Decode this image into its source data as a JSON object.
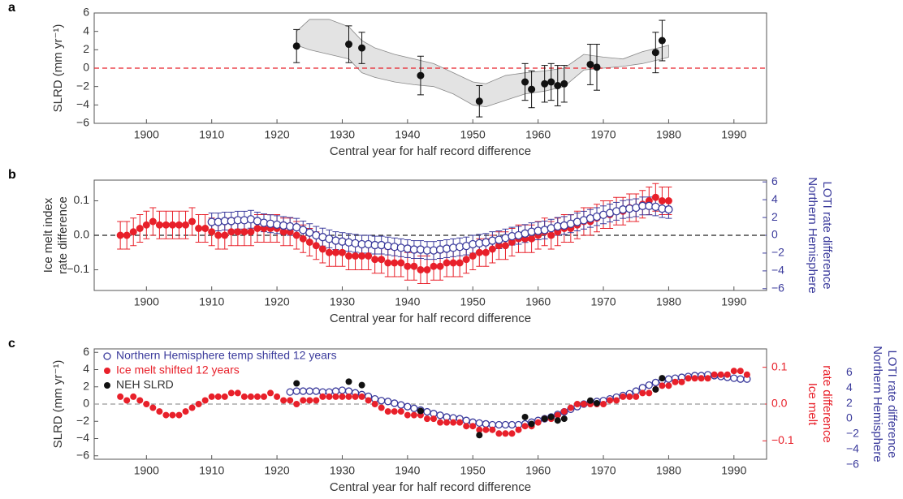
{
  "chart_data": [
    {
      "type": "scatter",
      "panel_label": "a",
      "xlabel": "Central year for half record difference",
      "ylabel": "SLRD (mm yr⁻¹)",
      "xlim": [
        1892,
        1995
      ],
      "xticks": [
        1900,
        1910,
        1920,
        1930,
        1940,
        1950,
        1960,
        1970,
        1980,
        1990
      ],
      "ylim": [
        -6,
        6
      ],
      "yticks": [
        {
          "value": -6,
          "label": "−6"
        },
        {
          "value": -4,
          "label": "−4"
        },
        {
          "value": -2,
          "label": "−2"
        },
        0,
        2,
        4,
        6
      ],
      "reference_line": {
        "value": 0,
        "color": "#e8202a",
        "style": "dashed"
      },
      "band": {
        "color": "#e3e3e3",
        "x": [
          1923,
          1925,
          1928,
          1931,
          1933,
          1935,
          1938,
          1941,
          1944,
          1947,
          1950,
          1952,
          1955,
          1958,
          1961,
          1964,
          1967,
          1970,
          1973,
          1976,
          1979,
          1980
        ],
        "upper": [
          4.0,
          5.3,
          5.3,
          4.5,
          3.0,
          2.2,
          1.5,
          1.0,
          0.5,
          -0.5,
          -1.5,
          -1.7,
          -0.8,
          -0.5,
          -0.3,
          0.0,
          1.5,
          1.2,
          1.0,
          1.8,
          2.3,
          2.5
        ],
        "lower": [
          2.5,
          2.0,
          1.5,
          1.0,
          -0.5,
          -1.0,
          -1.5,
          -1.8,
          -2.0,
          -2.8,
          -4.0,
          -4.2,
          -3.5,
          -2.8,
          -2.5,
          -2.0,
          -0.2,
          0.0,
          0.2,
          0.5,
          1.0,
          1.2
        ]
      },
      "series": [
        {
          "color": "#111111",
          "marker": "filled",
          "axis": "y",
          "x": [
            1923,
            1931,
            1933,
            1942,
            1951,
            1958,
            1959,
            1961,
            1962,
            1963,
            1964,
            1968,
            1969,
            1978,
            1979
          ],
          "values": [
            2.4,
            2.6,
            2.2,
            -0.8,
            -3.6,
            -1.5,
            -2.3,
            -1.7,
            -1.5,
            -1.9,
            -1.7,
            0.4,
            0.1,
            1.7,
            3.0
          ],
          "errors": [
            1.8,
            2.0,
            1.7,
            2.1,
            1.7,
            2.0,
            2.0,
            2.0,
            2.0,
            2.2,
            2.0,
            2.2,
            2.5,
            2.2,
            2.2
          ]
        }
      ]
    },
    {
      "type": "scatter",
      "panel_label": "b",
      "xlabel": "Central year for half record difference",
      "ylabel": [
        "Ice melt index",
        "rate difference"
      ],
      "y2label": [
        "Northern Hemisphere",
        "LOTI rate difference"
      ],
      "y2_color": "#3b3b9c",
      "xlim": [
        1892,
        1995
      ],
      "xticks": [
        1900,
        1910,
        1920,
        1930,
        1940,
        1950,
        1960,
        1970,
        1980,
        1990
      ],
      "ylim": [
        -0.16,
        0.16
      ],
      "yticks": [
        {
          "value": -0.1,
          "label": "−0.1"
        },
        {
          "value": 0,
          "label": "0.0"
        },
        0.1
      ],
      "y2lim": [
        -6.2,
        6.2
      ],
      "y2ticks": [
        {
          "value": -6,
          "label": "−6"
        },
        {
          "value": -4,
          "label": "−4"
        },
        {
          "value": -2,
          "label": "−2"
        },
        0,
        2,
        4,
        6
      ],
      "reference_line": {
        "value": 0,
        "color": "#222222",
        "style": "dashed"
      },
      "series": [
        {
          "color": "#e8202a",
          "marker": "filled",
          "axis": "y",
          "error": 0.04,
          "x": [
            1896,
            1897,
            1898,
            1899,
            1900,
            1901,
            1902,
            1903,
            1904,
            1905,
            1906,
            1907,
            1908,
            1909,
            1910,
            1911,
            1912,
            1913,
            1914,
            1915,
            1916,
            1917,
            1918,
            1919,
            1920,
            1921,
            1922,
            1923,
            1924,
            1925,
            1926,
            1927,
            1928,
            1929,
            1930,
            1931,
            1932,
            1933,
            1934,
            1935,
            1936,
            1937,
            1938,
            1939,
            1940,
            1941,
            1942,
            1943,
            1944,
            1945,
            1946,
            1947,
            1948,
            1949,
            1950,
            1951,
            1952,
            1953,
            1954,
            1955,
            1956,
            1957,
            1958,
            1959,
            1960,
            1961,
            1962,
            1963,
            1964,
            1965,
            1966,
            1967,
            1968,
            1969,
            1970,
            1971,
            1972,
            1973,
            1974,
            1975,
            1976,
            1977,
            1978,
            1979,
            1980
          ],
          "values": [
            0.0,
            0.0,
            0.01,
            0.02,
            0.03,
            0.04,
            0.03,
            0.03,
            0.03,
            0.03,
            0.03,
            0.04,
            0.02,
            0.02,
            0.01,
            0.0,
            0.0,
            0.01,
            0.01,
            0.01,
            0.01,
            0.02,
            0.02,
            0.02,
            0.02,
            0.01,
            0.01,
            0.0,
            -0.01,
            -0.02,
            -0.03,
            -0.04,
            -0.05,
            -0.05,
            -0.05,
            -0.06,
            -0.06,
            -0.06,
            -0.06,
            -0.07,
            -0.07,
            -0.08,
            -0.08,
            -0.08,
            -0.09,
            -0.09,
            -0.1,
            -0.1,
            -0.09,
            -0.09,
            -0.08,
            -0.08,
            -0.08,
            -0.07,
            -0.06,
            -0.05,
            -0.05,
            -0.04,
            -0.03,
            -0.03,
            -0.02,
            -0.01,
            -0.01,
            -0.01,
            0.0,
            0.01,
            0.0,
            0.01,
            0.02,
            0.02,
            0.03,
            0.04,
            0.04,
            0.05,
            0.06,
            0.06,
            0.07,
            0.07,
            0.08,
            0.08,
            0.09,
            0.1,
            0.11,
            0.1,
            0.1
          ]
        },
        {
          "color": "#3b3b9c",
          "marker": "open",
          "axis": "y2",
          "error": 1.0,
          "x": [
            1910,
            1911,
            1912,
            1913,
            1914,
            1915,
            1916,
            1917,
            1918,
            1919,
            1920,
            1921,
            1922,
            1923,
            1924,
            1925,
            1926,
            1927,
            1928,
            1929,
            1930,
            1931,
            1932,
            1933,
            1934,
            1935,
            1936,
            1937,
            1938,
            1939,
            1940,
            1941,
            1942,
            1943,
            1944,
            1945,
            1946,
            1947,
            1948,
            1949,
            1950,
            1951,
            1952,
            1953,
            1954,
            1955,
            1956,
            1957,
            1958,
            1959,
            1960,
            1961,
            1962,
            1963,
            1964,
            1965,
            1966,
            1967,
            1968,
            1969,
            1970,
            1971,
            1972,
            1973,
            1974,
            1975,
            1976,
            1977,
            1978,
            1979,
            1980
          ],
          "values": [
            1.5,
            1.5,
            1.6,
            1.6,
            1.7,
            1.7,
            1.8,
            1.6,
            1.4,
            1.3,
            1.2,
            1.1,
            1.0,
            0.9,
            0.6,
            0.3,
            0.0,
            -0.2,
            -0.4,
            -0.6,
            -0.7,
            -0.8,
            -0.9,
            -1.0,
            -1.0,
            -1.1,
            -1.1,
            -1.2,
            -1.3,
            -1.4,
            -1.5,
            -1.6,
            -1.6,
            -1.7,
            -1.7,
            -1.6,
            -1.5,
            -1.4,
            -1.3,
            -1.2,
            -1.0,
            -0.9,
            -0.8,
            -0.6,
            -0.5,
            -0.3,
            -0.1,
            0.0,
            0.2,
            0.4,
            0.5,
            0.6,
            0.8,
            1.0,
            1.1,
            1.3,
            1.5,
            1.7,
            1.9,
            2.1,
            2.3,
            2.5,
            2.7,
            2.9,
            3.0,
            3.1,
            3.3,
            3.3,
            3.2,
            3.0,
            2.9
          ]
        }
      ]
    },
    {
      "type": "scatter",
      "panel_label": "c",
      "xlabel": "Central year for half record difference",
      "ylabel": "SLRD (mm yr⁻¹)",
      "y2label": [
        "Ice melt",
        "rate difference"
      ],
      "y2_color": "#e8202a",
      "y3label": [
        "Northern Hemisphere",
        "LOTI rate difference"
      ],
      "y3_color": "#3b3b9c",
      "xlim": [
        1892,
        1995
      ],
      "xticks": [
        1900,
        1910,
        1920,
        1930,
        1940,
        1950,
        1960,
        1970,
        1980,
        1990
      ],
      "ylim": [
        -6.4,
        6.4
      ],
      "yticks": [
        {
          "value": -6,
          "label": "−6"
        },
        {
          "value": -4,
          "label": "−4"
        },
        {
          "value": -2,
          "label": "−2"
        },
        0,
        2,
        4,
        6
      ],
      "y2lim": [
        -0.15,
        0.15
      ],
      "y2ticks": [
        {
          "value": -0.1,
          "label": "−0.1"
        },
        {
          "value": 0,
          "label": "0.0"
        },
        0.1
      ],
      "y3lim": [
        -5.3,
        9.1
      ],
      "y3ticks": [
        {
          "value": -6,
          "label": "−6"
        },
        {
          "value": -4,
          "label": "−4"
        },
        {
          "value": -2,
          "label": "−2"
        },
        0,
        2,
        4,
        6
      ],
      "reference_line": {
        "value": 0,
        "color": "#999999",
        "style": "dashed"
      },
      "legend": "upper left",
      "series": [
        {
          "name": "Northern Hemisphere temp shifted 12 years",
          "color": "#3b3b9c",
          "marker": "open",
          "axis": "y",
          "x": [
            1922,
            1923,
            1924,
            1925,
            1926,
            1927,
            1928,
            1929,
            1930,
            1931,
            1932,
            1933,
            1934,
            1935,
            1936,
            1937,
            1938,
            1939,
            1940,
            1941,
            1942,
            1943,
            1944,
            1945,
            1946,
            1947,
            1948,
            1949,
            1950,
            1951,
            1952,
            1953,
            1954,
            1955,
            1956,
            1957,
            1958,
            1959,
            1960,
            1961,
            1962,
            1963,
            1964,
            1965,
            1966,
            1967,
            1968,
            1969,
            1970,
            1971,
            1972,
            1973,
            1974,
            1975,
            1976,
            1977,
            1978,
            1979,
            1980,
            1981,
            1982,
            1983,
            1984,
            1985,
            1986,
            1987,
            1988,
            1989,
            1990,
            1991,
            1992
          ],
          "values": [
            1.4,
            1.5,
            1.5,
            1.5,
            1.5,
            1.4,
            1.4,
            1.5,
            1.6,
            1.5,
            1.3,
            1.1,
            0.9,
            0.6,
            0.4,
            0.3,
            0.1,
            -0.1,
            -0.3,
            -0.5,
            -0.7,
            -0.9,
            -1.1,
            -1.3,
            -1.5,
            -1.6,
            -1.7,
            -1.9,
            -2.1,
            -2.2,
            -2.3,
            -2.4,
            -2.4,
            -2.4,
            -2.4,
            -2.4,
            -2.3,
            -2.1,
            -1.9,
            -1.7,
            -1.5,
            -1.2,
            -0.9,
            -0.6,
            -0.3,
            0.0,
            0.2,
            0.3,
            0.4,
            0.6,
            0.8,
            1.0,
            1.2,
            1.5,
            1.9,
            2.2,
            2.5,
            2.7,
            2.9,
            3.0,
            3.1,
            3.2,
            3.3,
            3.3,
            3.4,
            3.3,
            3.2,
            3.1,
            3.0,
            2.9,
            2.9
          ]
        },
        {
          "name": "Ice melt shifted 12 years",
          "color": "#e8202a",
          "marker": "filled",
          "axis": "y2",
          "x": [
            1896,
            1897,
            1898,
            1899,
            1900,
            1901,
            1902,
            1903,
            1904,
            1905,
            1906,
            1907,
            1908,
            1909,
            1910,
            1911,
            1912,
            1913,
            1914,
            1915,
            1916,
            1917,
            1918,
            1919,
            1920,
            1921,
            1922,
            1923,
            1924,
            1925,
            1926,
            1927,
            1928,
            1929,
            1930,
            1931,
            1932,
            1933,
            1934,
            1935,
            1936,
            1937,
            1938,
            1939,
            1940,
            1941,
            1942,
            1943,
            1944,
            1945,
            1946,
            1947,
            1948,
            1949,
            1950,
            1951,
            1952,
            1953,
            1954,
            1955,
            1956,
            1957,
            1958,
            1959,
            1960,
            1961,
            1962,
            1963,
            1964,
            1965,
            1966,
            1967,
            1968,
            1969,
            1970,
            1971,
            1972,
            1973,
            1974,
            1975,
            1976,
            1977,
            1978,
            1979,
            1980,
            1981,
            1982,
            1983,
            1984,
            1985,
            1986,
            1987,
            1988,
            1989,
            1990,
            1991,
            1992
          ],
          "values": [
            0.02,
            0.01,
            0.02,
            0.01,
            0.0,
            -0.01,
            -0.02,
            -0.03,
            -0.03,
            -0.03,
            -0.02,
            -0.01,
            0.0,
            0.01,
            0.02,
            0.02,
            0.02,
            0.03,
            0.03,
            0.02,
            0.02,
            0.02,
            0.02,
            0.03,
            0.02,
            0.01,
            0.01,
            0.0,
            0.01,
            0.01,
            0.01,
            0.02,
            0.02,
            0.02,
            0.02,
            0.02,
            0.02,
            0.02,
            0.01,
            0.0,
            -0.01,
            -0.02,
            -0.02,
            -0.02,
            -0.03,
            -0.03,
            -0.03,
            -0.04,
            -0.04,
            -0.05,
            -0.05,
            -0.05,
            -0.05,
            -0.06,
            -0.06,
            -0.07,
            -0.07,
            -0.07,
            -0.08,
            -0.08,
            -0.08,
            -0.07,
            -0.06,
            -0.06,
            -0.05,
            -0.04,
            -0.04,
            -0.03,
            -0.02,
            -0.01,
            0.0,
            0.0,
            0.0,
            0.0,
            0.0,
            0.01,
            0.01,
            0.02,
            0.02,
            0.02,
            0.03,
            0.03,
            0.04,
            0.05,
            0.05,
            0.06,
            0.06,
            0.07,
            0.07,
            0.07,
            0.07,
            0.08,
            0.08,
            0.08,
            0.09,
            0.09,
            0.08
          ]
        },
        {
          "name": "NEH SLRD",
          "color": "#111111",
          "marker": "filled",
          "axis": "y",
          "x": [
            1923,
            1931,
            1933,
            1942,
            1951,
            1958,
            1959,
            1961,
            1962,
            1963,
            1964,
            1968,
            1969,
            1978,
            1979
          ],
          "values": [
            2.4,
            2.6,
            2.2,
            -0.8,
            -3.6,
            -1.5,
            -2.3,
            -1.7,
            -1.5,
            -1.9,
            -1.7,
            0.4,
            0.1,
            1.7,
            3.0
          ]
        }
      ]
    }
  ]
}
